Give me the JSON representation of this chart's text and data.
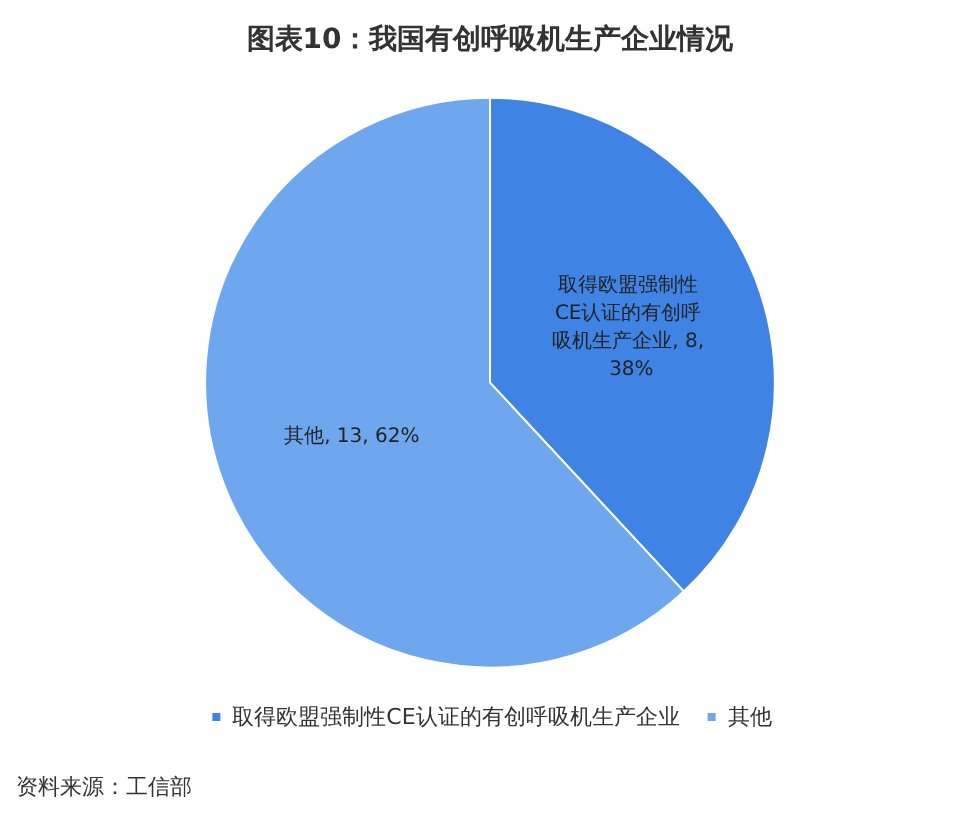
{
  "chart_data": {
    "type": "pie",
    "title": "图表10：我国有创呼吸机生产企业情况",
    "categories": [
      "取得欧盟强制性CE认证的有创呼吸机生产企业",
      "其他"
    ],
    "values": [
      8,
      13
    ],
    "value_labels": [
      "取得欧盟强制性CE认证的有创呼吸机生产企业, 8, 38%",
      "其他, 13, 62%"
    ],
    "colors": [
      "#3f84e5",
      "#6ea7ee"
    ],
    "legend": "bottom",
    "annotations": [
      "资料来源：工信部"
    ]
  }
}
